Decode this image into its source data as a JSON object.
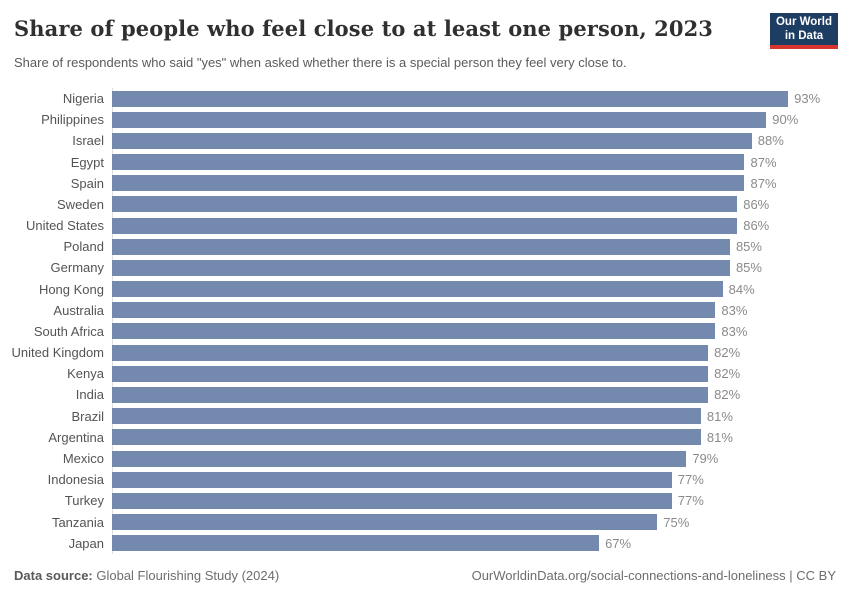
{
  "header": {
    "title": "Share of people who feel close to at least one person, 2023",
    "subtitle": "Share of respondents who said \"yes\" when asked whether there is a special person they feel very close to.",
    "logo": {
      "line1": "Our World",
      "line2": "in Data"
    }
  },
  "chart_data": {
    "type": "bar",
    "orientation": "horizontal",
    "title": "Share of people who feel close to at least one person, 2023",
    "unit": "%",
    "xlim": [
      0,
      100
    ],
    "grid": false,
    "bar_color": "#7389ae",
    "categories": [
      "Nigeria",
      "Philippines",
      "Israel",
      "Egypt",
      "Spain",
      "Sweden",
      "United States",
      "Poland",
      "Germany",
      "Hong Kong",
      "Australia",
      "South Africa",
      "United Kingdom",
      "Kenya",
      "India",
      "Brazil",
      "Argentina",
      "Mexico",
      "Indonesia",
      "Turkey",
      "Tanzania",
      "Japan"
    ],
    "values": [
      93,
      90,
      88,
      87,
      87,
      86,
      86,
      85,
      85,
      84,
      83,
      83,
      82,
      82,
      82,
      81,
      81,
      79,
      77,
      77,
      75,
      67
    ]
  },
  "footer": {
    "datasource_label": "Data source:",
    "datasource_value": " Global Flourishing Study (2024)",
    "attribution": "OurWorldinData.org/social-connections-and-loneliness | CC BY"
  },
  "colors": {
    "logo_background": "#1d3d63",
    "logo_accent": "#d6362e",
    "bar": "#7389ae",
    "title_text": "#303030",
    "subtitle_text": "#5b5b5b",
    "value_label_text": "#8a8a8a"
  }
}
